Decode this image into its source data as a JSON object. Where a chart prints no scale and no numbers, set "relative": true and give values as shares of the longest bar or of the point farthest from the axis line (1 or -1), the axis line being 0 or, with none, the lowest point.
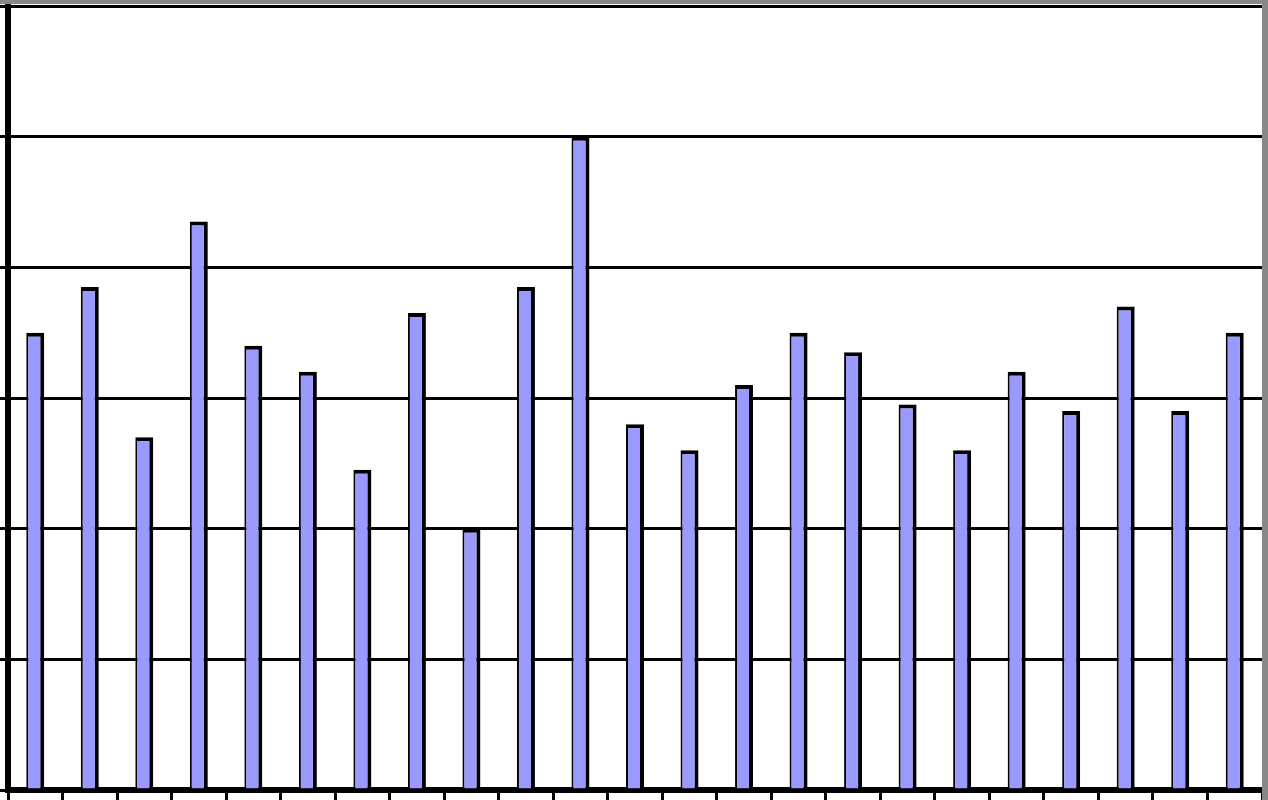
{
  "chart_data": {
    "type": "bar",
    "relative": true,
    "categories": [
      null,
      null,
      null,
      null,
      null,
      null,
      null,
      null,
      null,
      null,
      null,
      null,
      null,
      null,
      null,
      null,
      null,
      null,
      null,
      null,
      null,
      null,
      null
    ],
    "values": [
      0.7,
      0.77,
      0.54,
      0.87,
      0.68,
      0.64,
      0.49,
      0.73,
      0.4,
      0.77,
      1,
      0.56,
      0.52,
      0.62,
      0.7,
      0.67,
      0.59,
      0.52,
      0.64,
      0.58,
      0.74,
      0.58,
      0.7
    ],
    "color": "#9999ff",
    "grid": "y",
    "tick_labels": false
  }
}
